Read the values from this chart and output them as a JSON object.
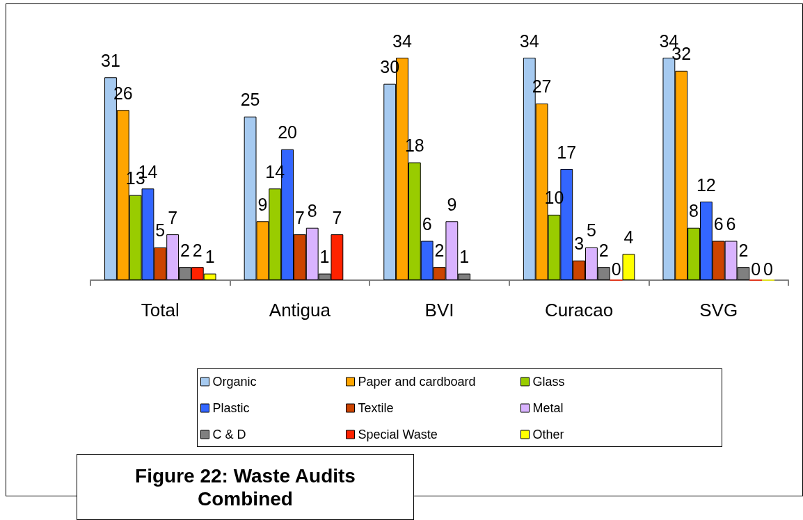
{
  "chart_data": {
    "type": "bar",
    "title": "Figure 22: Waste Audits Combined",
    "categories": [
      "Total",
      "Antigua",
      "BVI",
      "Curacao",
      "SVG"
    ],
    "series": [
      {
        "name": "Organic",
        "color": "#a6caf0",
        "values": [
          31,
          25,
          30,
          34,
          34
        ]
      },
      {
        "name": "Paper and cardboard",
        "color": "#ffa500",
        "values": [
          26,
          9,
          34,
          27,
          32
        ]
      },
      {
        "name": "Glass",
        "color": "#99cc00",
        "values": [
          13,
          14,
          18,
          10,
          8
        ]
      },
      {
        "name": "Plastic",
        "color": "#3366ff",
        "values": [
          14,
          20,
          6,
          17,
          12
        ]
      },
      {
        "name": "Textile",
        "color": "#cc4400",
        "values": [
          5,
          7,
          2,
          3,
          6
        ]
      },
      {
        "name": "Metal",
        "color": "#d9b3ff",
        "values": [
          7,
          8,
          9,
          5,
          6
        ]
      },
      {
        "name": "C & D",
        "color": "#808080",
        "values": [
          2,
          1,
          1,
          2,
          2
        ]
      },
      {
        "name": "Special Waste",
        "color": "#ff2200",
        "values": [
          2,
          7,
          null,
          0,
          0
        ]
      },
      {
        "name": "Other",
        "color": "#ffff00",
        "values": [
          1,
          null,
          null,
          4,
          0
        ]
      }
    ],
    "data_labels": true,
    "legend": "bottom",
    "grid": false,
    "tick_labels": "x"
  }
}
